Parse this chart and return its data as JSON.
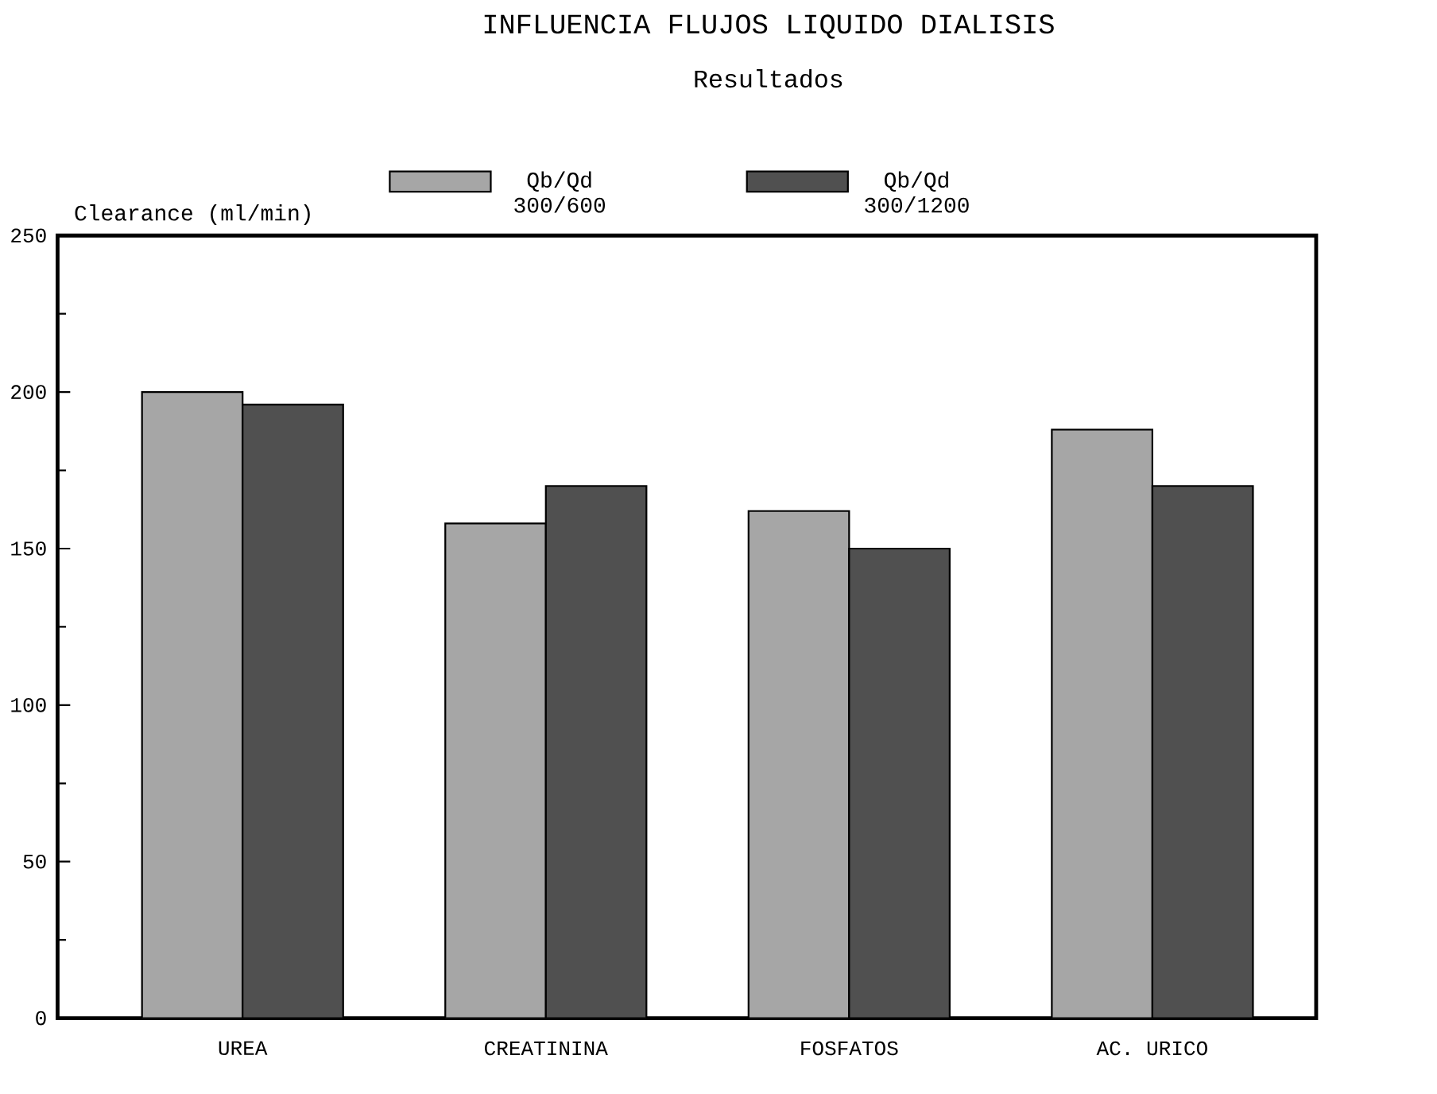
{
  "chart_data": {
    "type": "bar",
    "title": "INFLUENCIA FLUJOS LIQUIDO DIALISIS",
    "subtitle": "Resultados",
    "ylabel": "Clearance (ml/min)",
    "categories": [
      "UREA",
      "CREATININA",
      "FOSFATOS",
      "AC. URICO"
    ],
    "series": [
      {
        "name": "Qb/Qd 300/600",
        "color": "#a6a6a6",
        "values": [
          200,
          158,
          162,
          188
        ]
      },
      {
        "name": "Qb/Qd 300/1200",
        "color": "#505050",
        "values": [
          196,
          170,
          150,
          170
        ]
      }
    ],
    "ylim": [
      0,
      250
    ],
    "yticks": [
      0,
      50,
      100,
      150,
      200,
      250
    ],
    "legend": "top"
  }
}
